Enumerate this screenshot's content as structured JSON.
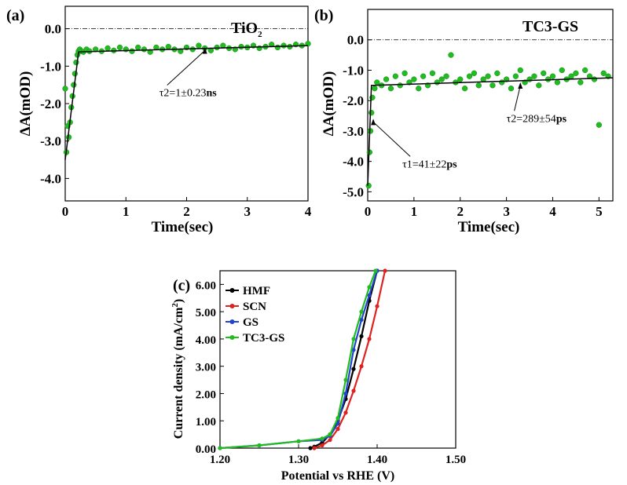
{
  "chart_data": [
    {
      "panel": "(a)",
      "type": "scatter",
      "title": "TiO",
      "title_sub": "2",
      "xlabel": "Time(sec)",
      "ylabel": "ΔA(mOD)",
      "xlim": [
        0,
        4
      ],
      "ylim": [
        -4.6,
        0.6
      ],
      "xticks": [
        0,
        1,
        2,
        3,
        4
      ],
      "xticklabels": [
        "0",
        "1",
        "2",
        "3",
        "4"
      ],
      "yticks": [
        0,
        -1,
        -2,
        -3,
        -4
      ],
      "yticklabels": [
        "0.0",
        "-1.0",
        "-2.0",
        "-3.0",
        "-4.0"
      ],
      "reference_line_y": 0,
      "series": [
        {
          "color": "#22bb22",
          "x": [
            0.0,
            0.02,
            0.04,
            0.06,
            0.08,
            0.1,
            0.12,
            0.14,
            0.16,
            0.18,
            0.2,
            0.22,
            0.24,
            0.26,
            0.3,
            0.35,
            0.4,
            0.5,
            0.6,
            0.7,
            0.8,
            0.9,
            1.0,
            1.1,
            1.2,
            1.3,
            1.4,
            1.5,
            1.6,
            1.7,
            1.8,
            1.9,
            2.0,
            2.1,
            2.2,
            2.3,
            2.4,
            2.5,
            2.6,
            2.7,
            2.8,
            2.9,
            3.0,
            3.1,
            3.2,
            3.3,
            3.4,
            3.5,
            3.6,
            3.7,
            3.8,
            3.9,
            4.0
          ],
          "y": [
            -1.6,
            -3.3,
            -2.6,
            -2.9,
            -2.5,
            -2.1,
            -1.8,
            -1.5,
            -1.2,
            -0.9,
            -0.7,
            -0.6,
            -0.55,
            -0.6,
            -0.62,
            -0.55,
            -0.6,
            -0.55,
            -0.6,
            -0.52,
            -0.58,
            -0.5,
            -0.55,
            -0.6,
            -0.5,
            -0.55,
            -0.62,
            -0.5,
            -0.55,
            -0.48,
            -0.55,
            -0.6,
            -0.5,
            -0.55,
            -0.45,
            -0.52,
            -0.58,
            -0.5,
            -0.45,
            -0.52,
            -0.55,
            -0.48,
            -0.5,
            -0.45,
            -0.52,
            -0.48,
            -0.42,
            -0.5,
            -0.45,
            -0.48,
            -0.42,
            -0.45,
            -0.4
          ]
        }
      ],
      "fit": {
        "x": [
          0.0,
          0.22,
          4.0
        ],
        "y": [
          -3.5,
          -0.62,
          -0.45
        ]
      },
      "annotations": [
        {
          "text": "τ2=1±0.23",
          "bold_suffix": "ns",
          "target_x": 2.3,
          "target_y": -0.5,
          "text_x": 1.55,
          "text_y": -1.8
        }
      ]
    },
    {
      "panel": "(b)",
      "type": "scatter",
      "title": "TC3-GS",
      "xlabel": "Time(sec)",
      "ylabel": "ΔA(mOD)",
      "xlim": [
        0,
        5.3
      ],
      "ylim": [
        -5.3,
        1.0
      ],
      "xticks": [
        0,
        1,
        2,
        3,
        4,
        5
      ],
      "xticklabels": [
        "0",
        "1",
        "2",
        "3",
        "4",
        "5"
      ],
      "yticks": [
        0,
        -1,
        -2,
        -3,
        -4,
        -5
      ],
      "yticklabels": [
        "0.0",
        "-1.0",
        "-2.0",
        "-3.0",
        "-4.0",
        "-5.0"
      ],
      "reference_line_y": 0,
      "series": [
        {
          "color": "#22bb22",
          "x": [
            0.02,
            0.04,
            0.06,
            0.08,
            0.1,
            0.15,
            0.2,
            0.3,
            0.4,
            0.5,
            0.6,
            0.7,
            0.8,
            0.9,
            1.0,
            1.1,
            1.2,
            1.3,
            1.4,
            1.5,
            1.6,
            1.7,
            1.8,
            1.9,
            2.0,
            2.1,
            2.2,
            2.3,
            2.4,
            2.5,
            2.6,
            2.7,
            2.8,
            2.9,
            3.0,
            3.1,
            3.2,
            3.3,
            3.4,
            3.5,
            3.6,
            3.7,
            3.8,
            3.9,
            4.0,
            4.1,
            4.2,
            4.3,
            4.4,
            4.5,
            4.6,
            4.7,
            4.8,
            4.9,
            5.0,
            5.1,
            5.2
          ],
          "y": [
            -4.8,
            -3.7,
            -3.0,
            -2.4,
            -1.9,
            -1.6,
            -1.4,
            -1.5,
            -1.3,
            -1.6,
            -1.2,
            -1.5,
            -1.1,
            -1.4,
            -1.3,
            -1.6,
            -1.2,
            -1.5,
            -1.1,
            -1.4,
            -1.3,
            -1.2,
            -0.5,
            -1.4,
            -1.3,
            -1.6,
            -1.2,
            -1.1,
            -1.5,
            -1.3,
            -1.2,
            -1.5,
            -1.1,
            -1.4,
            -1.3,
            -1.6,
            -1.2,
            -1.0,
            -1.4,
            -1.3,
            -1.2,
            -1.5,
            -1.1,
            -1.3,
            -1.2,
            -1.4,
            -1.0,
            -1.3,
            -1.2,
            -1.1,
            -1.4,
            -1.0,
            -1.2,
            -1.3,
            -2.8,
            -1.1,
            -1.2
          ]
        }
      ],
      "fit": {
        "x": [
          0.0,
          0.08,
          5.3
        ],
        "y": [
          -4.8,
          -1.5,
          -1.25
        ]
      },
      "annotations": [
        {
          "text": "τ2=289±54",
          "bold_suffix": "ps",
          "target_x": 3.3,
          "target_y": -1.4,
          "text_x": 3.0,
          "text_y": -2.7
        },
        {
          "text": "τ1=41±22",
          "bold_suffix": "ps",
          "target_x": 0.12,
          "target_y": -2.6,
          "text_x": 0.75,
          "text_y": -4.2
        }
      ]
    },
    {
      "panel": "(c)",
      "type": "line",
      "xlabel": "Potential  vs RHE (V)",
      "ylabel": "Current density (mA/cm",
      "ylabel_sup": "2",
      "ylabel_close": ")",
      "xlim": [
        1.2,
        1.5
      ],
      "ylim": [
        0,
        6.5
      ],
      "xticks": [
        1.2,
        1.3,
        1.4,
        1.5
      ],
      "xticklabels": [
        "1.20",
        "1.30",
        "1.40",
        "1.50"
      ],
      "yticks": [
        0,
        1,
        2,
        3,
        4,
        5,
        6
      ],
      "yticklabels": [
        "0.00",
        "1.00",
        "2.00",
        "3.00",
        "4.00",
        "5.00",
        "6.00"
      ],
      "legend": "top-left",
      "series": [
        {
          "name": "HMF",
          "color": "#000000",
          "x": [
            1.315,
            1.32,
            1.33,
            1.34,
            1.35,
            1.36,
            1.37,
            1.38,
            1.39,
            1.4
          ],
          "y": [
            0.0,
            0.05,
            0.2,
            0.5,
            1.0,
            1.8,
            2.9,
            4.1,
            5.4,
            6.5
          ]
        },
        {
          "name": "SCN",
          "color": "#dd2222",
          "x": [
            1.32,
            1.33,
            1.34,
            1.35,
            1.36,
            1.37,
            1.38,
            1.39,
            1.4,
            1.41
          ],
          "y": [
            0.0,
            0.1,
            0.3,
            0.7,
            1.3,
            2.1,
            3.0,
            4.0,
            5.2,
            6.5
          ]
        },
        {
          "name": "GS",
          "color": "#2244cc",
          "x": [
            1.2,
            1.25,
            1.3,
            1.33,
            1.34,
            1.35,
            1.36,
            1.37,
            1.38,
            1.39,
            1.4
          ],
          "y": [
            0.0,
            0.1,
            0.25,
            0.3,
            0.45,
            0.9,
            2.0,
            3.6,
            4.7,
            5.6,
            6.5
          ]
        },
        {
          "name": "TC3-GS",
          "color": "#22bb22",
          "x": [
            1.2,
            1.25,
            1.3,
            1.33,
            1.34,
            1.35,
            1.36,
            1.37,
            1.38,
            1.39,
            1.398
          ],
          "y": [
            0.0,
            0.1,
            0.25,
            0.35,
            0.5,
            1.1,
            2.5,
            4.0,
            5.0,
            5.9,
            6.5
          ]
        }
      ]
    }
  ]
}
